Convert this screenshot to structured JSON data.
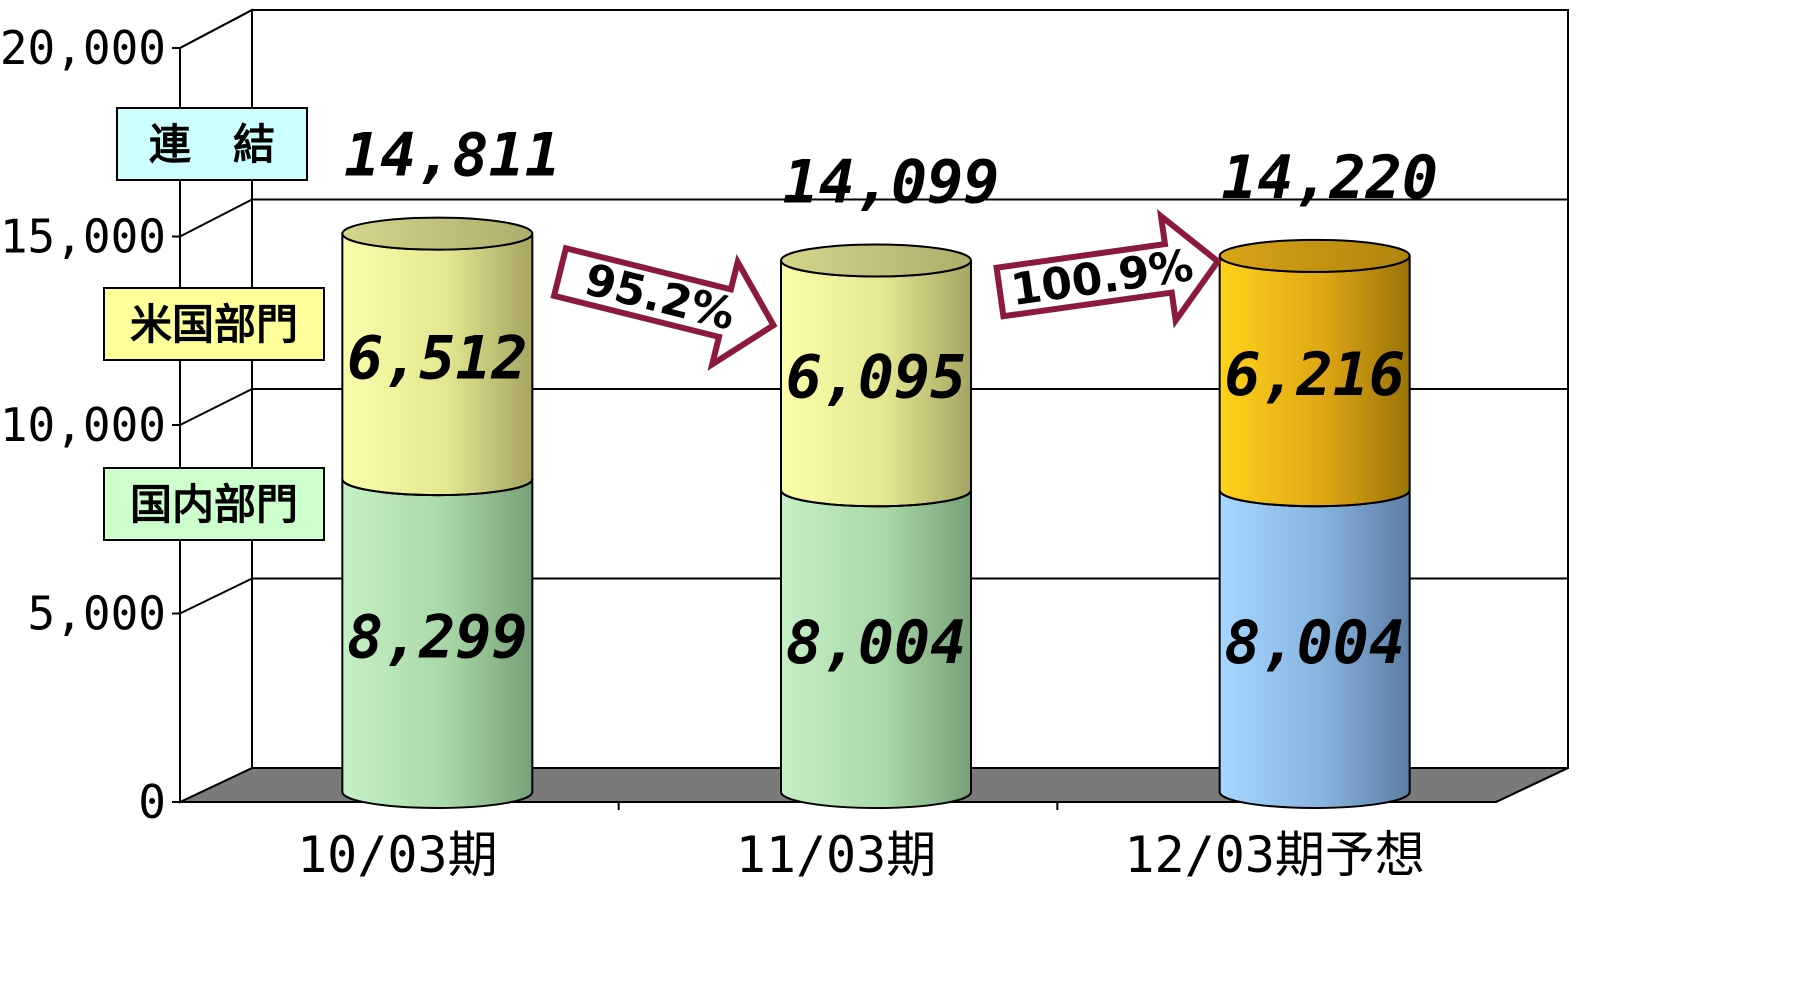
{
  "chart_data": {
    "type": "bar",
    "stacked": true,
    "categories": [
      "10/03期",
      "11/03期",
      "12/03期予想"
    ],
    "series": [
      {
        "name": "国内部門",
        "values": [
          8299,
          8004,
          8004
        ]
      },
      {
        "name": "米国部門",
        "values": [
          6512,
          6095,
          6216
        ]
      }
    ],
    "totals": [
      14811,
      14099,
      14220
    ],
    "total_labels": [
      "14,811",
      "14,099",
      "14,220"
    ],
    "segment_labels": [
      [
        "8,299",
        "8,004",
        "8,004"
      ],
      [
        "6,512",
        "6,095",
        "6,216"
      ]
    ],
    "growth_labels": [
      "95.2%",
      "100.9%"
    ],
    "legend": [
      "連　結",
      "米国部門",
      "国内部門"
    ],
    "yticks": [
      "0",
      "5,000",
      "10,000",
      "15,000",
      "20,000"
    ],
    "ylim": [
      0,
      20000
    ],
    "grid": true,
    "colors": {
      "domestic": "#b4e2b4",
      "domestic_forecast": "#94c2ee",
      "us": "#eef09a",
      "us_forecast": "#f2c020",
      "arrow": "#8b1a3c",
      "legend_consolidated": "#ccffff",
      "legend_us": "#ffff99",
      "legend_domestic": "#ccffcc"
    }
  }
}
